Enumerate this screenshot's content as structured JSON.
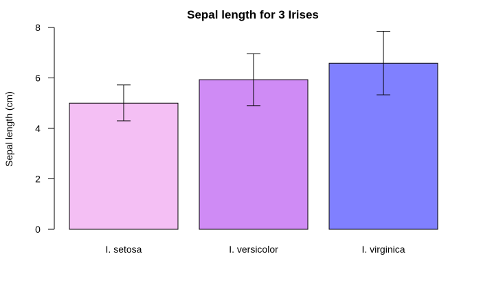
{
  "chart_data": {
    "type": "bar",
    "title": "Sepal length for 3 Irises",
    "xlabel": "",
    "ylabel": "Sepal length (cm)",
    "categories": [
      "I. setosa",
      "I. versicolor",
      "I. virginica"
    ],
    "values": [
      5.0,
      5.93,
      6.58
    ],
    "error_bars": {
      "lower": [
        4.3,
        4.9,
        5.33
      ],
      "upper": [
        5.72,
        6.96,
        7.85
      ]
    },
    "colors": [
      "#f4bff4",
      "#cf8bf5",
      "#8080ff"
    ],
    "ylim": [
      0,
      8
    ],
    "yticks": [
      0,
      2,
      4,
      6,
      8
    ],
    "grid": false,
    "legend": "none"
  }
}
